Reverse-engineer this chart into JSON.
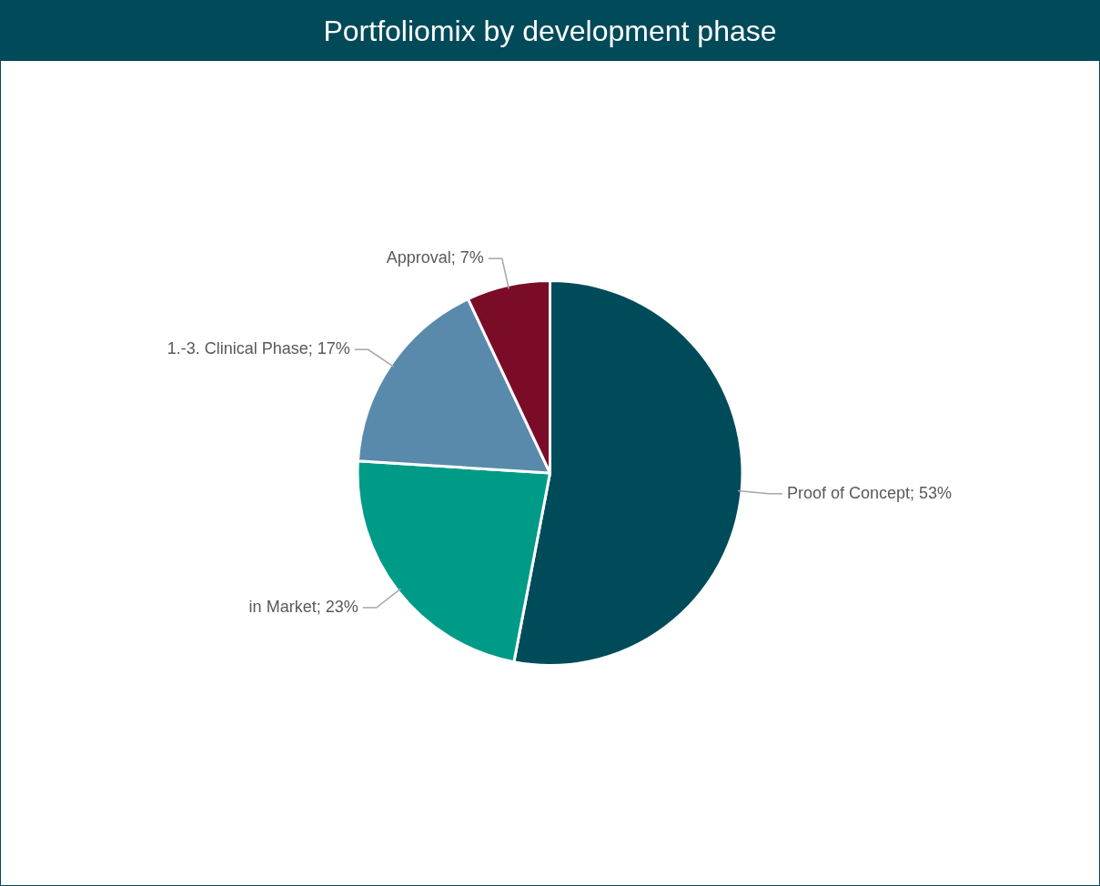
{
  "chart_data": {
    "type": "pie",
    "title": "Portfoliomix by development phase",
    "categories": [
      "Proof of Concept",
      "in Market",
      "1.-3. Clinical Phase",
      "Approval"
    ],
    "values": [
      53,
      23,
      17,
      7
    ],
    "value_labels": [
      "53%",
      "23%",
      "17%",
      "7%"
    ],
    "colors": [
      "#004b5a",
      "#009b87",
      "#5a8aab",
      "#7b0c28"
    ],
    "legend": false
  }
}
